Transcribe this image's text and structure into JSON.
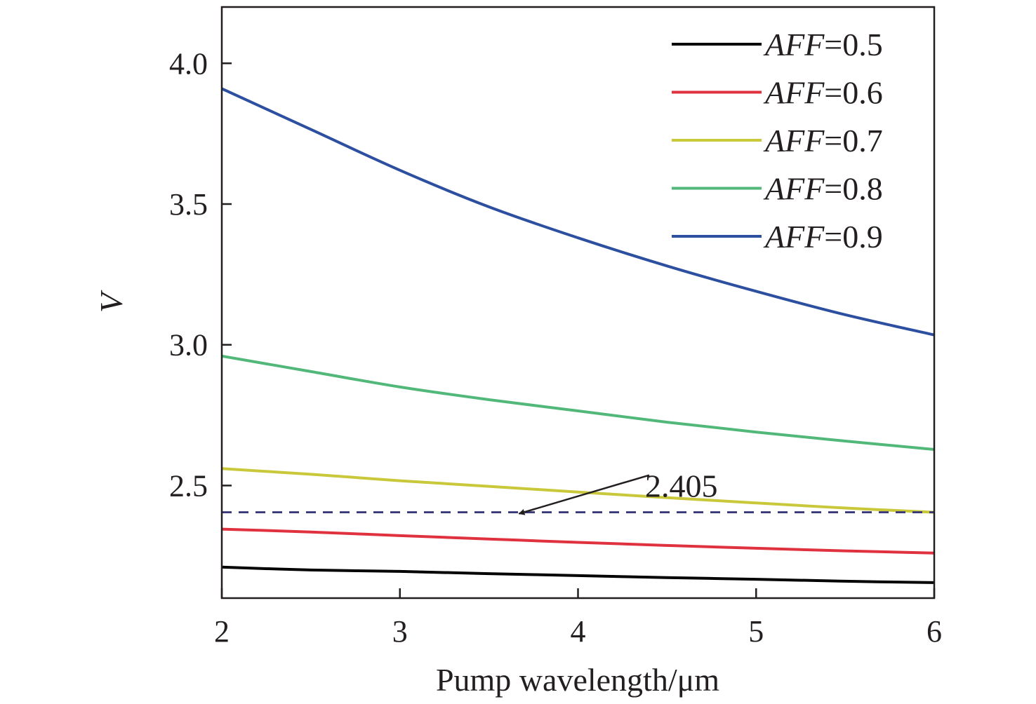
{
  "chart_data": {
    "type": "line",
    "title": "",
    "xlabel": "Pump wavelength/μm",
    "ylabel": "V",
    "xlim": [
      2,
      6
    ],
    "ylim": [
      2.1,
      4.2
    ],
    "xticks": [
      2,
      3,
      4,
      5,
      6
    ],
    "xtick_labels": [
      "2",
      "3",
      "4",
      "5",
      "6"
    ],
    "yticks": [
      2.5,
      3.0,
      3.5,
      4.0
    ],
    "ytick_labels": [
      "2.5",
      "3.0",
      "3.5",
      "4.0"
    ],
    "grid": false,
    "legend": {
      "position": "top-right"
    },
    "series": [
      {
        "name": "AFF=0.5",
        "label_var": "AFF",
        "label_value": "=0.5",
        "color": "#000000",
        "x": [
          2,
          2.5,
          3,
          3.5,
          4,
          4.5,
          5,
          5.5,
          6
        ],
        "y": [
          2.21,
          2.2,
          2.195,
          2.187,
          2.18,
          2.173,
          2.167,
          2.16,
          2.155
        ]
      },
      {
        "name": "AFF=0.6",
        "label_var": "AFF",
        "label_value": "=0.6",
        "color": "#e0313f",
        "x": [
          2,
          2.5,
          3,
          3.5,
          4,
          4.5,
          5,
          5.5,
          6
        ],
        "y": [
          2.345,
          2.335,
          2.322,
          2.31,
          2.298,
          2.287,
          2.277,
          2.268,
          2.26
        ]
      },
      {
        "name": "AFF=0.7",
        "label_var": "AFF",
        "label_value": "=0.7",
        "color": "#c8c83a",
        "x": [
          2,
          2.5,
          3,
          3.5,
          4,
          4.5,
          5,
          5.5,
          6
        ],
        "y": [
          2.56,
          2.54,
          2.517,
          2.497,
          2.477,
          2.457,
          2.438,
          2.42,
          2.405
        ]
      },
      {
        "name": "AFF=0.8",
        "label_var": "AFF",
        "label_value": "=0.8",
        "color": "#52b87a",
        "x": [
          2,
          2.5,
          3,
          3.5,
          4,
          4.5,
          5,
          5.5,
          6
        ],
        "y": [
          2.96,
          2.905,
          2.85,
          2.805,
          2.765,
          2.725,
          2.69,
          2.658,
          2.628
        ]
      },
      {
        "name": "AFF=0.9",
        "label_var": "AFF",
        "label_value": "=0.9",
        "color": "#2d4fa0",
        "x": [
          2,
          2.5,
          3,
          3.5,
          4,
          4.5,
          5,
          5.5,
          6
        ],
        "y": [
          3.91,
          3.765,
          3.62,
          3.49,
          3.38,
          3.28,
          3.19,
          3.107,
          3.035
        ]
      }
    ],
    "reference_line": {
      "y": 2.405,
      "style": "dashed",
      "color": "#3a3a7a"
    },
    "annotation": {
      "text": "2.405",
      "text_at": [
        4.25,
        2.44
      ],
      "arrow_from": [
        4.25,
        2.492
      ],
      "arrow_to": [
        3.7,
        2.405
      ]
    }
  }
}
